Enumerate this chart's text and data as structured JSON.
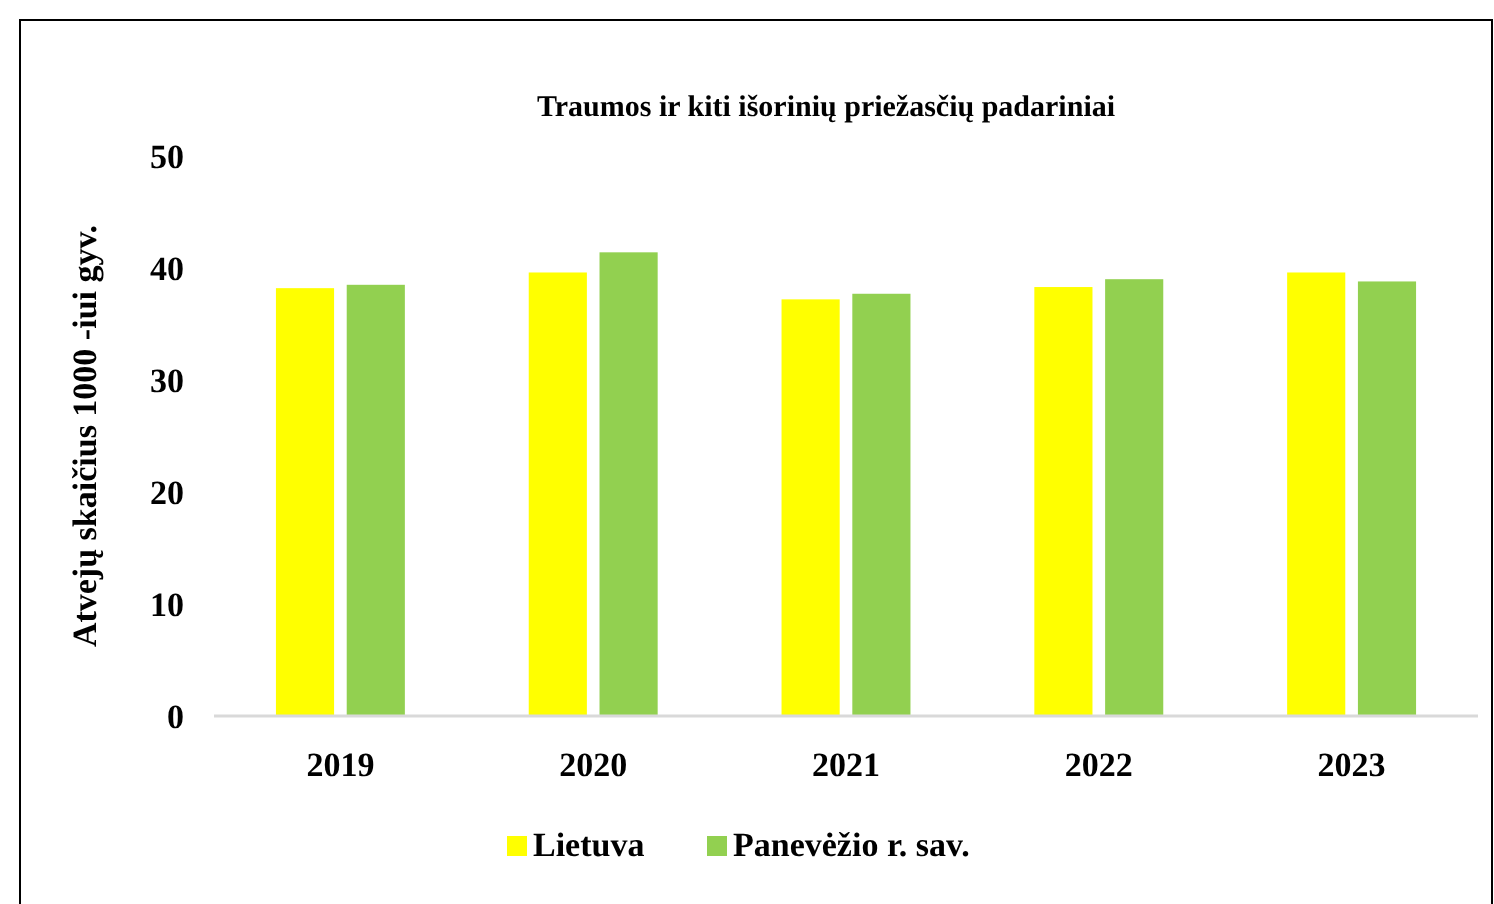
{
  "chart_data": {
    "type": "bar",
    "title": "Traumos ir kiti išorinių priežasčių padariniai",
    "ylabel": "Atvejų skaičius 1000 -iui gyv.",
    "categories": [
      "2019",
      "2020",
      "2021",
      "2022",
      "2023"
    ],
    "series": [
      {
        "name": "Lietuva",
        "color": "#ffff00",
        "values": [
          38.2,
          39.6,
          37.2,
          38.3,
          39.6
        ]
      },
      {
        "name": "Panevėžio r. sav.",
        "color": "#92d050",
        "values": [
          38.5,
          41.4,
          37.7,
          39.0,
          38.8
        ]
      }
    ],
    "ylim": [
      0,
      50
    ],
    "yticks": [
      0,
      10,
      20,
      30,
      40,
      50
    ],
    "grid": false,
    "legend": "bottom"
  }
}
